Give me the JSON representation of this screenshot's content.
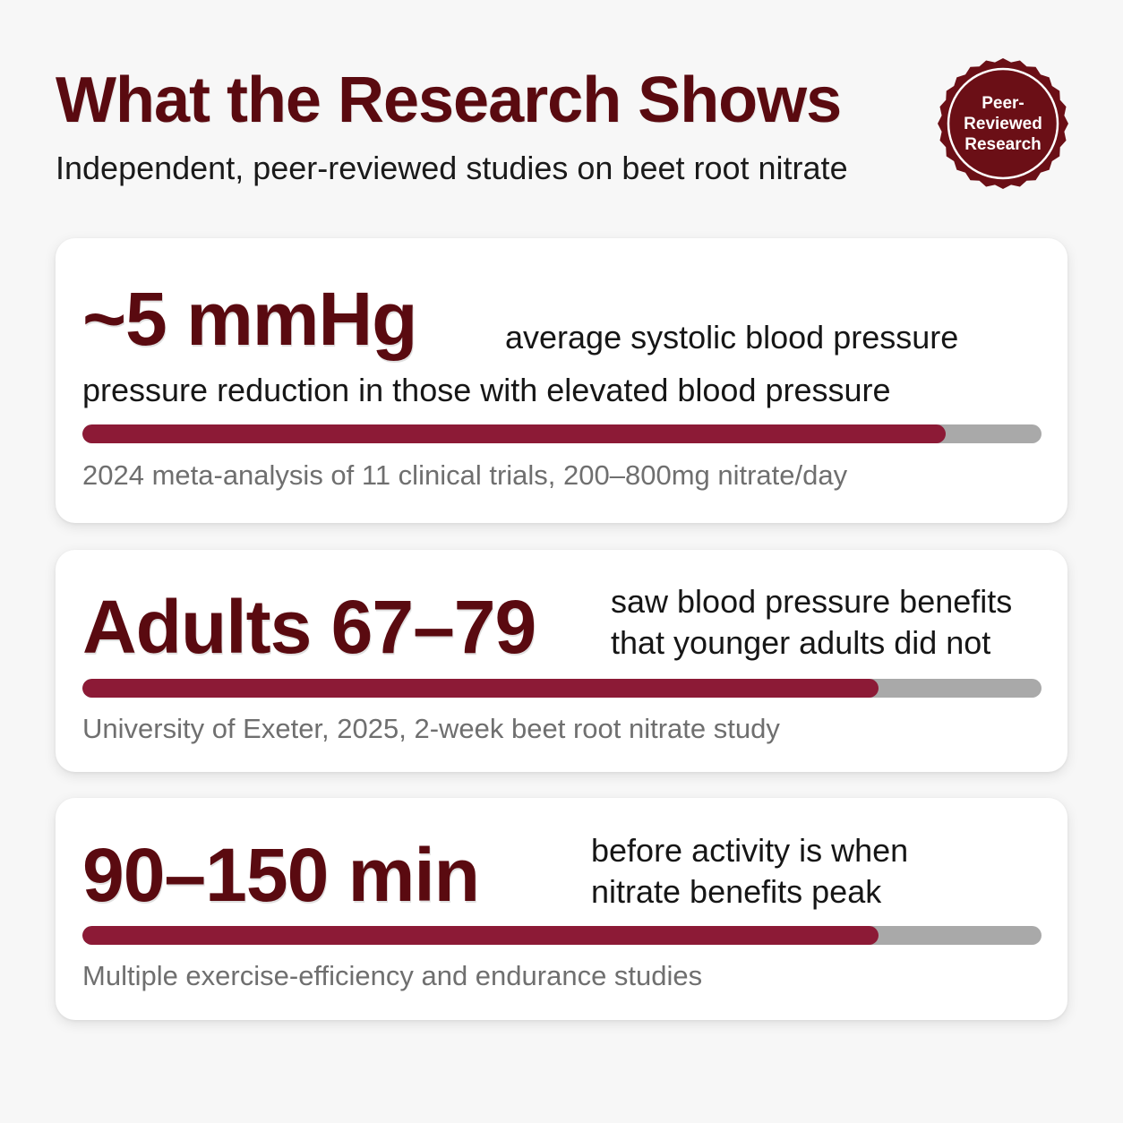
{
  "header": {
    "title": "What the Research Shows",
    "subtitle": "Independent, peer-reviewed studies on beet root nitrate"
  },
  "seal": {
    "lines": [
      "Peer-",
      "Reviewed",
      "Research"
    ]
  },
  "colors": {
    "title": "#5a0a10",
    "accent_fill": "#8c1a36",
    "track": "#a9a9a9",
    "seal": "#6b0f16",
    "background": "#f7f7f7"
  },
  "stats": [
    {
      "stat": "~5 mmHg",
      "desc_line1": "average systolic blood pressure",
      "desc_line2": "pressure reduction in those with elevated blood pressure",
      "progress": 0.9,
      "source": "2024 meta-analysis of 11 clinical trials, 200–800mg nitrate/day"
    },
    {
      "stat": "Adults 67–79",
      "desc_line1": "saw blood pressure benefits",
      "desc_line2": "that younger adults did not",
      "progress": 0.83,
      "source": "University of Exeter, 2025, 2-week beet root nitrate study"
    },
    {
      "stat": "90–150 min",
      "desc_line1": "before activity is when",
      "desc_line2": "nitrate benefits peak",
      "progress": 0.83,
      "source": "Multiple exercise-efficiency and endurance studies"
    }
  ]
}
